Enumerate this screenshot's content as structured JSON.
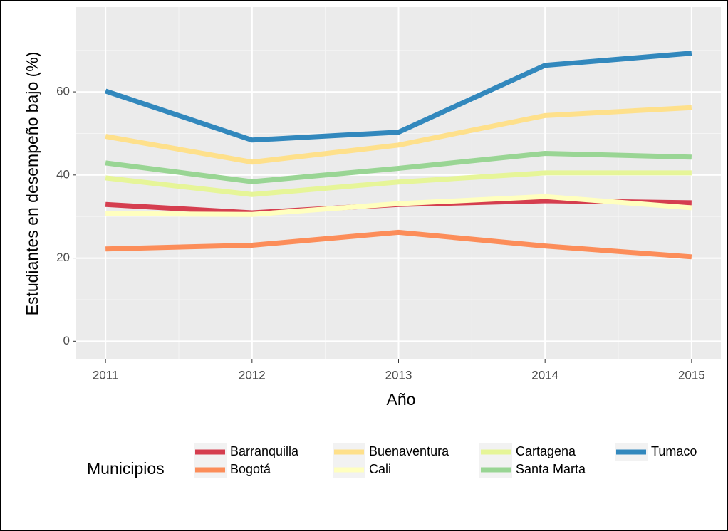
{
  "chart_data": {
    "type": "line",
    "x_label": "Año",
    "y_label": "Estudiantes en desempeño bajo (%)",
    "x": [
      2011,
      2012,
      2013,
      2014,
      2015
    ],
    "xlim": [
      2010.8,
      2015.2
    ],
    "xticks": [
      2011,
      2012,
      2013,
      2014,
      2015
    ],
    "ylim": [
      -4.4,
      80.4
    ],
    "yticks": [
      0,
      20,
      40,
      60
    ],
    "grid": true,
    "legend_title": "Municipios",
    "legend_position": "bottom",
    "series": [
      {
        "name": "Barranquilla",
        "color": "#d53e4f",
        "values": [
          32.9,
          30.9,
          32.9,
          33.8,
          33.3
        ]
      },
      {
        "name": "Bogotá",
        "color": "#fc8d59",
        "values": [
          22.2,
          23.1,
          26.2,
          22.9,
          20.3
        ]
      },
      {
        "name": "Buenaventura",
        "color": "#fee08b",
        "values": [
          49.3,
          43.1,
          47.2,
          54.3,
          56.2
        ]
      },
      {
        "name": "Cali",
        "color": "#ffffbf",
        "values": [
          30.7,
          30.5,
          33.1,
          34.8,
          32.1
        ]
      },
      {
        "name": "Cartagena",
        "color": "#e6f598",
        "values": [
          39.3,
          35.3,
          38.3,
          40.5,
          40.5
        ]
      },
      {
        "name": "Santa Marta",
        "color": "#99d594",
        "values": [
          42.9,
          38.4,
          41.6,
          45.2,
          44.3
        ]
      },
      {
        "name": "Tumaco",
        "color": "#3288bd",
        "values": [
          60.2,
          48.4,
          50.3,
          66.4,
          69.3
        ]
      }
    ]
  }
}
